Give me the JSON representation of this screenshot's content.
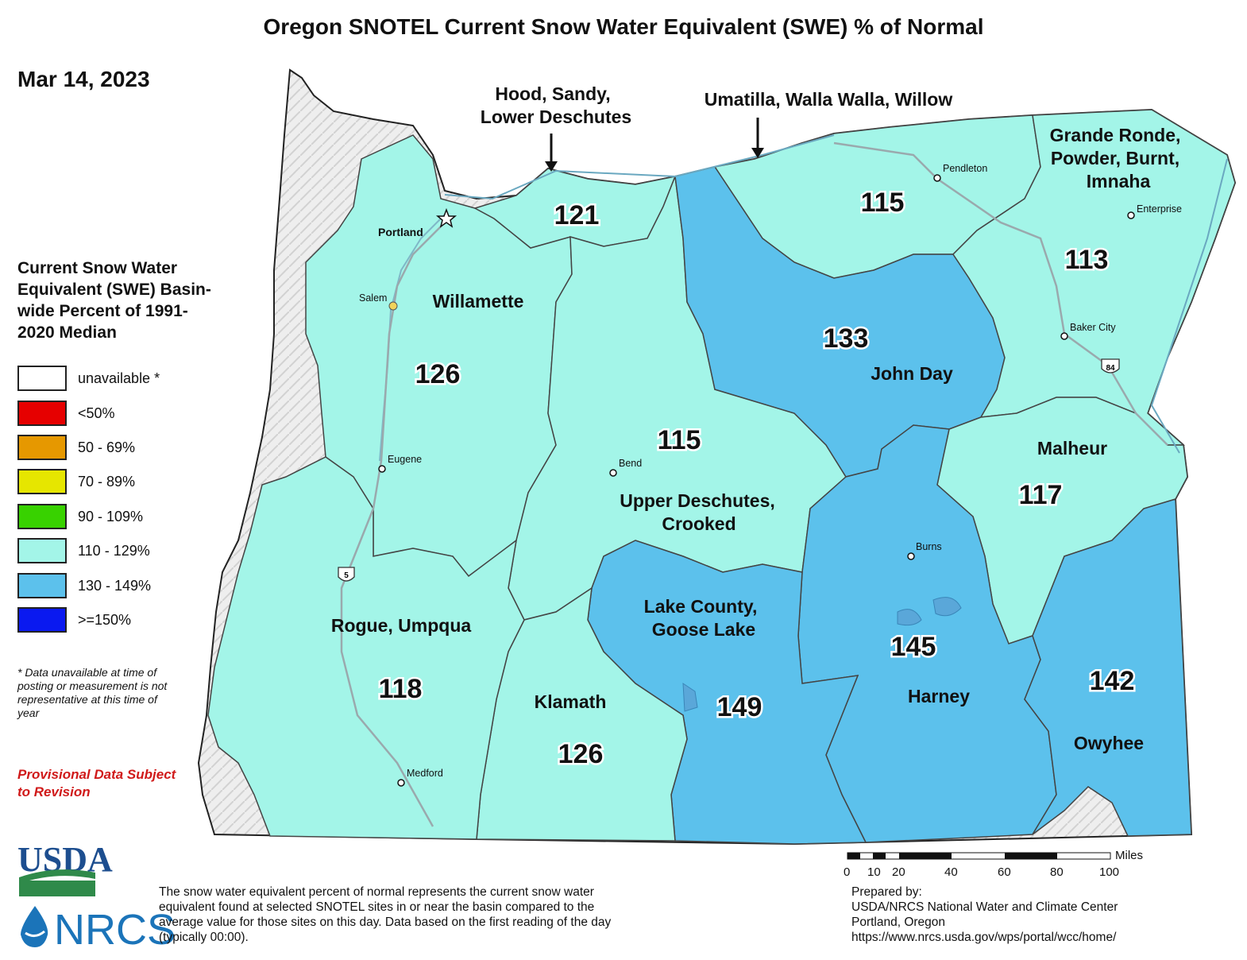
{
  "title": "Oregon SNOTEL Current Snow Water Equivalent (SWE) % of Normal",
  "date": "Mar 14, 2023",
  "legend": {
    "title": "Current Snow Water Equivalent (SWE) Basin-wide Percent of 1991-2020 Median",
    "classes": [
      {
        "label": "unavailable *",
        "color": "#ffffff"
      },
      {
        "label": "<50%",
        "color": "#e60000"
      },
      {
        "label": "50 - 69%",
        "color": "#e69800"
      },
      {
        "label": "70 - 89%",
        "color": "#e6e600"
      },
      {
        "label": "90 - 109%",
        "color": "#38d200"
      },
      {
        "label": "110 - 129%",
        "color": "#a3f5e8"
      },
      {
        "label": "130 - 149%",
        "color": "#5cc1ec"
      },
      {
        "label": ">=150%",
        "color": "#0a19f0"
      }
    ]
  },
  "footnote": "* Data unavailable at time of posting or measurement is not representative at this time of year",
  "provisional": "Provisional Data Subject to Revision",
  "basins": {
    "willamette": {
      "name": "Willamette",
      "value": "126"
    },
    "hood": {
      "name_line1": "Hood, Sandy,",
      "name_line2": "Lower Deschutes",
      "value": "121"
    },
    "umatilla": {
      "name": "Umatilla, Walla Walla, Willow",
      "value": "115"
    },
    "grande_ronde": {
      "name_line1": "Grande Ronde,",
      "name_line2": "Powder, Burnt,",
      "name_line3": "Imnaha",
      "value": "113"
    },
    "john_day": {
      "name": "John Day",
      "value": "133"
    },
    "upper_deschutes": {
      "name_line1": "Upper Deschutes,",
      "name_line2": "Crooked",
      "value": "115"
    },
    "malheur": {
      "name": "Malheur",
      "value": "117"
    },
    "rogue_umpqua": {
      "name": "Rogue, Umpqua",
      "value": "118"
    },
    "klamath": {
      "name": "Klamath",
      "value": "126"
    },
    "lake_county": {
      "name_line1": "Lake County,",
      "name_line2": "Goose Lake",
      "value": "149"
    },
    "harney": {
      "name": "Harney",
      "value": "145"
    },
    "owyhee": {
      "name": "Owyhee",
      "value": "142"
    }
  },
  "cities": {
    "portland": "Portland",
    "salem": "Salem",
    "eugene": "Eugene",
    "medford": "Medford",
    "bend": "Bend",
    "burns": "Burns",
    "pendleton": "Pendleton",
    "enterprise": "Enterprise",
    "baker_city": "Baker City"
  },
  "highways": {
    "i5": "5",
    "i84": "84"
  },
  "scale_bar": {
    "unit": "Miles",
    "ticks": [
      "0",
      "10",
      "20",
      "40",
      "60",
      "80",
      "100"
    ]
  },
  "description": "The snow water equivalent percent of normal represents the current snow water equivalent found at selected SNOTEL sites in or near the basin compared to the average value for those sites on this day. Data based on the first reading of the day (typically 00:00).",
  "prepared_by": {
    "line1": "Prepared by:",
    "line2": "USDA/NRCS National Water and Climate Center",
    "line3": "Portland, Oregon",
    "line4": "https://www.nrcs.usda.gov/wps/portal/wcc/home/"
  },
  "logos": {
    "usda": "USDA",
    "nrcs": "NRCS"
  }
}
